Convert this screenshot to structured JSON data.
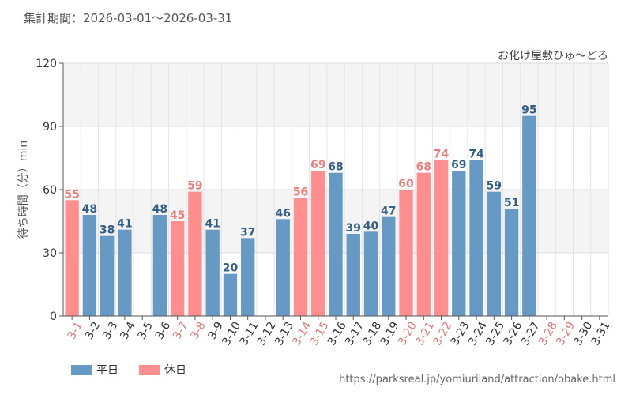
{
  "period": "集計期間：2026-03-01〜2026-03-31",
  "source_url": "https://parksreal.jp/yomiuriland/attraction/obake.html",
  "colors": {
    "weekday": "#6699c4",
    "holiday": "#ff8f8f",
    "holiday_text": "#e8807f",
    "weekday_text": "#335f87",
    "holiday_label": "#e27878",
    "axis_text": "#333333"
  },
  "legend": [
    {
      "key": "weekday",
      "label": "平日"
    },
    {
      "key": "holiday",
      "label": "休日"
    }
  ],
  "chart_data": {
    "type": "bar",
    "title": "お化け屋敷ひゅ〜どろ",
    "xlabel": "",
    "ylabel": "待ち時間（分）min",
    "ylim": [
      0,
      120
    ],
    "yticks": [
      0,
      30,
      60,
      90,
      120
    ],
    "grid": true,
    "categories": [
      "3-1",
      "3-2",
      "3-3",
      "3-4",
      "3-5",
      "3-6",
      "3-7",
      "3-8",
      "3-9",
      "3-10",
      "3-11",
      "3-12",
      "3-13",
      "3-14",
      "3-15",
      "3-16",
      "3-17",
      "3-18",
      "3-19",
      "3-20",
      "3-21",
      "3-22",
      "3-23",
      "3-24",
      "3-25",
      "3-26",
      "3-27",
      "3-28",
      "3-29",
      "3-30",
      "3-31"
    ],
    "day_type": [
      "holiday",
      "weekday",
      "weekday",
      "weekday",
      "weekday",
      "weekday",
      "holiday",
      "holiday",
      "weekday",
      "weekday",
      "weekday",
      "weekday",
      "weekday",
      "holiday",
      "holiday",
      "weekday",
      "weekday",
      "weekday",
      "weekday",
      "holiday",
      "holiday",
      "holiday",
      "weekday",
      "weekday",
      "weekday",
      "weekday",
      "weekday",
      "holiday",
      "holiday",
      "weekday",
      "weekday"
    ],
    "values": [
      55,
      48,
      38,
      41,
      null,
      48,
      45,
      59,
      41,
      20,
      37,
      null,
      46,
      56,
      69,
      68,
      39,
      40,
      47,
      60,
      68,
      74,
      69,
      74,
      59,
      51,
      95,
      null,
      null,
      null,
      null
    ]
  }
}
